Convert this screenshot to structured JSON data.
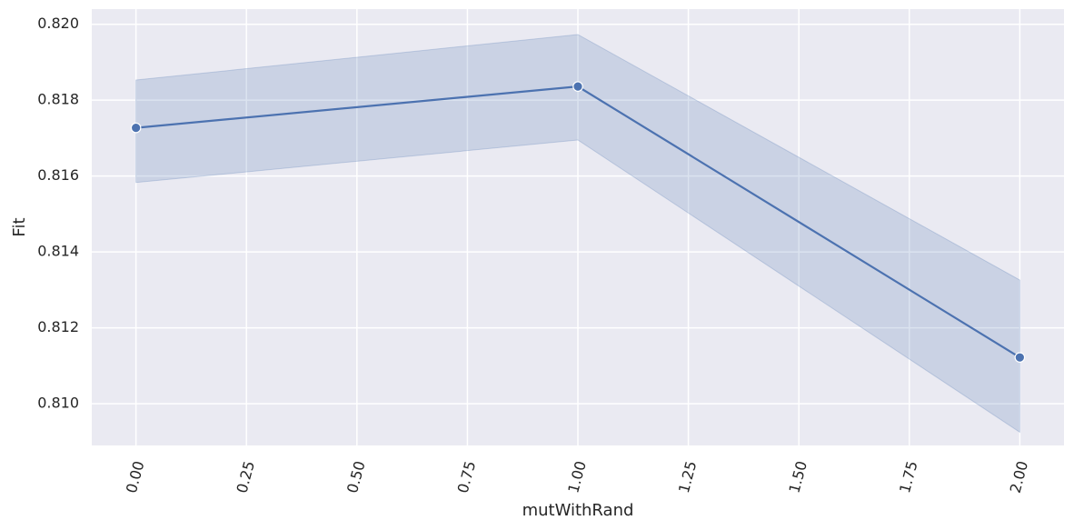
{
  "chart_data": {
    "type": "line",
    "xlabel": "mutWithRand",
    "ylabel": "Fit",
    "xlim": [
      -0.1,
      2.1
    ],
    "ylim": [
      0.8089,
      0.8204
    ],
    "x_ticks": [
      0.0,
      0.25,
      0.5,
      0.75,
      1.0,
      1.25,
      1.5,
      1.75,
      2.0
    ],
    "x_tick_labels": [
      "0.00",
      "0.25",
      "0.50",
      "0.75",
      "1.00",
      "1.25",
      "1.50",
      "1.75",
      "2.00"
    ],
    "y_ticks": [
      0.81,
      0.812,
      0.814,
      0.816,
      0.818,
      0.82
    ],
    "y_tick_labels": [
      "0.810",
      "0.812",
      "0.814",
      "0.816",
      "0.818",
      "0.820"
    ],
    "grid": true,
    "series": [
      {
        "x": [
          0.0,
          1.0,
          2.0
        ],
        "y": [
          0.81727,
          0.81836,
          0.81122
        ],
        "ci_lower": [
          0.81583,
          0.81695,
          0.80925
        ],
        "ci_upper": [
          0.81853,
          0.81973,
          0.81326
        ],
        "color": "#4c72b0"
      }
    ],
    "colors": {
      "background": "#eaeaf2",
      "grid": "#ffffff",
      "line": "#4c72b0",
      "band": "#4c72b0"
    }
  }
}
